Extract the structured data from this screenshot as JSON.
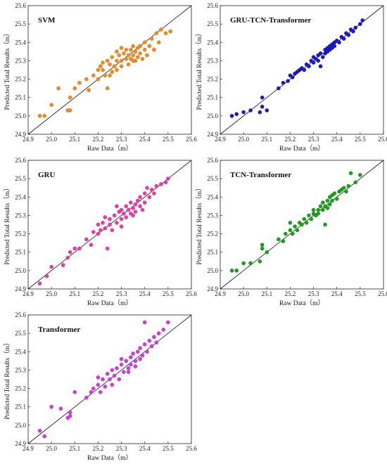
{
  "figure": {
    "xlabel": "Raw Data（m）",
    "ylabel": "Predicted Total Results（m）"
  },
  "chart_data": [
    {
      "type": "scatter",
      "title": "SVM",
      "xlabel": "Raw Data（m）",
      "ylabel": "Predicted Total Results（m）",
      "xlim": [
        24.9,
        25.6
      ],
      "ylim": [
        24.9,
        25.6
      ],
      "xticks": [
        "24.9",
        "25.0",
        "25.1",
        "25.2",
        "25.3",
        "25.4",
        "25.5",
        "25.6"
      ],
      "yticks": [
        "24.9",
        "25.0",
        "25.1",
        "25.2",
        "25.3",
        "25.4",
        "25.5",
        "25.6"
      ],
      "reference_line": "y = x",
      "color": "#f08c1e",
      "points": [
        [
          24.95,
          25.0
        ],
        [
          24.97,
          25.0
        ],
        [
          25.0,
          25.06
        ],
        [
          25.03,
          25.15
        ],
        [
          25.07,
          25.03
        ],
        [
          25.08,
          25.03
        ],
        [
          25.08,
          25.1
        ],
        [
          25.1,
          25.15
        ],
        [
          25.12,
          25.18
        ],
        [
          25.15,
          25.2
        ],
        [
          25.16,
          25.14
        ],
        [
          25.18,
          25.22
        ],
        [
          25.2,
          25.2
        ],
        [
          25.2,
          25.25
        ],
        [
          25.21,
          25.27
        ],
        [
          25.22,
          25.29
        ],
        [
          25.23,
          25.22
        ],
        [
          25.24,
          25.15
        ],
        [
          25.24,
          25.3
        ],
        [
          25.25,
          25.28
        ],
        [
          25.26,
          25.24
        ],
        [
          25.26,
          25.32
        ],
        [
          25.27,
          25.27
        ],
        [
          25.28,
          25.3
        ],
        [
          25.28,
          25.25
        ],
        [
          25.29,
          25.33
        ],
        [
          25.3,
          25.3
        ],
        [
          25.3,
          25.27
        ],
        [
          25.31,
          25.34
        ],
        [
          25.32,
          25.31
        ],
        [
          25.32,
          25.36
        ],
        [
          25.33,
          25.28
        ],
        [
          25.33,
          25.33
        ],
        [
          25.34,
          25.31
        ],
        [
          25.34,
          25.36
        ],
        [
          25.35,
          25.33
        ],
        [
          25.35,
          25.38
        ],
        [
          25.36,
          25.3
        ],
        [
          25.36,
          25.35
        ],
        [
          25.37,
          25.32
        ],
        [
          25.37,
          25.37
        ],
        [
          25.38,
          25.34
        ],
        [
          25.38,
          25.38
        ],
        [
          25.39,
          25.31
        ],
        [
          25.4,
          25.36
        ],
        [
          25.4,
          25.4
        ],
        [
          25.41,
          25.33
        ],
        [
          25.42,
          25.38
        ],
        [
          25.43,
          25.42
        ],
        [
          25.44,
          25.36
        ],
        [
          25.45,
          25.45
        ],
        [
          25.46,
          25.4
        ],
        [
          25.47,
          25.47
        ],
        [
          25.49,
          25.45
        ],
        [
          25.51,
          25.46
        ],
        [
          25.28,
          25.35
        ],
        [
          25.3,
          25.37
        ],
        [
          25.35,
          25.3
        ],
        [
          25.22,
          25.25
        ],
        [
          25.25,
          25.22
        ]
      ]
    },
    {
      "type": "scatter",
      "title": "GRU-TCN-Transformer",
      "xlabel": "Raw Data（m）",
      "ylabel": "Predicted Total Results（m）",
      "xlim": [
        24.9,
        25.6
      ],
      "ylim": [
        24.9,
        25.6
      ],
      "xticks": [
        "24.9",
        "25.0",
        "25.1",
        "25.2",
        "25.3",
        "25.4",
        "25.5",
        "25.6"
      ],
      "yticks": [
        "24.9",
        "25.0",
        "25.1",
        "25.2",
        "25.3",
        "25.4",
        "25.5",
        "25.6"
      ],
      "reference_line": "y = x",
      "color": "#1a1ac8",
      "points": [
        [
          24.95,
          25.0
        ],
        [
          24.97,
          25.01
        ],
        [
          25.0,
          25.02
        ],
        [
          25.03,
          25.03
        ],
        [
          25.07,
          25.02
        ],
        [
          25.08,
          25.05
        ],
        [
          25.08,
          25.1
        ],
        [
          25.1,
          25.03
        ],
        [
          25.15,
          25.15
        ],
        [
          25.17,
          25.18
        ],
        [
          25.19,
          25.19
        ],
        [
          25.2,
          25.22
        ],
        [
          25.21,
          25.21
        ],
        [
          25.22,
          25.23
        ],
        [
          25.23,
          25.24
        ],
        [
          25.24,
          25.25
        ],
        [
          25.25,
          25.26
        ],
        [
          25.26,
          25.25
        ],
        [
          25.27,
          25.28
        ],
        [
          25.28,
          25.27
        ],
        [
          25.29,
          25.3
        ],
        [
          25.3,
          25.29
        ],
        [
          25.31,
          25.31
        ],
        [
          25.32,
          25.33
        ],
        [
          25.32,
          25.3
        ],
        [
          25.33,
          25.34
        ],
        [
          25.34,
          25.32
        ],
        [
          25.35,
          25.36
        ],
        [
          25.35,
          25.34
        ],
        [
          25.36,
          25.37
        ],
        [
          25.36,
          25.35
        ],
        [
          25.37,
          25.38
        ],
        [
          25.37,
          25.36
        ],
        [
          25.38,
          25.39
        ],
        [
          25.38,
          25.37
        ],
        [
          25.39,
          25.4
        ],
        [
          25.39,
          25.38
        ],
        [
          25.4,
          25.41
        ],
        [
          25.41,
          25.4
        ],
        [
          25.42,
          25.43
        ],
        [
          25.43,
          25.42
        ],
        [
          25.44,
          25.45
        ],
        [
          25.45,
          25.44
        ],
        [
          25.46,
          25.47
        ],
        [
          25.47,
          25.46
        ],
        [
          25.48,
          25.48
        ],
        [
          25.5,
          25.5
        ],
        [
          25.51,
          25.52
        ],
        [
          25.3,
          25.32
        ],
        [
          25.33,
          25.27
        ]
      ]
    },
    {
      "type": "scatter",
      "title": "GRU",
      "xlabel": "Raw Data（m）",
      "ylabel": "Predicted Total Results（m）",
      "xlim": [
        24.9,
        25.6
      ],
      "ylim": [
        24.9,
        25.6
      ],
      "xticks": [
        "24.9",
        "25.0",
        "25.1",
        "25.2",
        "25.3",
        "25.4",
        "25.5",
        "25.6"
      ],
      "yticks": [
        "24.9",
        "25.0",
        "25.1",
        "25.2",
        "25.3",
        "25.4",
        "25.5",
        "25.6"
      ],
      "reference_line": "y = x",
      "color": "#ee3aa8",
      "points": [
        [
          24.95,
          24.93
        ],
        [
          24.98,
          24.97
        ],
        [
          25.0,
          25.02
        ],
        [
          25.05,
          25.03
        ],
        [
          25.07,
          25.07
        ],
        [
          25.08,
          25.1
        ],
        [
          25.1,
          25.12
        ],
        [
          25.12,
          25.12
        ],
        [
          25.15,
          25.17
        ],
        [
          25.17,
          25.14
        ],
        [
          25.18,
          25.21
        ],
        [
          25.2,
          25.2
        ],
        [
          25.2,
          25.25
        ],
        [
          25.21,
          25.22
        ],
        [
          25.22,
          25.26
        ],
        [
          25.23,
          25.23
        ],
        [
          25.23,
          25.29
        ],
        [
          25.24,
          25.12
        ],
        [
          25.25,
          25.25
        ],
        [
          25.25,
          25.28
        ],
        [
          25.26,
          25.22
        ],
        [
          25.27,
          25.3
        ],
        [
          25.28,
          25.26
        ],
        [
          25.29,
          25.32
        ],
        [
          25.3,
          25.28
        ],
        [
          25.3,
          25.33
        ],
        [
          25.31,
          25.31
        ],
        [
          25.32,
          25.35
        ],
        [
          25.32,
          25.29
        ],
        [
          25.33,
          25.33
        ],
        [
          25.34,
          25.31
        ],
        [
          25.34,
          25.37
        ],
        [
          25.35,
          25.34
        ],
        [
          25.36,
          25.36
        ],
        [
          25.36,
          25.32
        ],
        [
          25.37,
          25.38
        ],
        [
          25.38,
          25.35
        ],
        [
          25.38,
          25.4
        ],
        [
          25.39,
          25.33
        ],
        [
          25.4,
          25.42
        ],
        [
          25.4,
          25.37
        ],
        [
          25.41,
          25.45
        ],
        [
          25.42,
          25.4
        ],
        [
          25.43,
          25.44
        ],
        [
          25.44,
          25.42
        ],
        [
          25.45,
          25.46
        ],
        [
          25.47,
          25.47
        ],
        [
          25.49,
          25.48
        ],
        [
          25.5,
          25.5
        ],
        [
          25.35,
          25.3
        ],
        [
          25.28,
          25.35
        ],
        [
          25.3,
          25.24
        ]
      ]
    },
    {
      "type": "scatter",
      "title": "TCN-Transformer",
      "xlabel": "Raw Data（m）",
      "ylabel": "Predicted Total Results（m）",
      "xlim": [
        24.9,
        25.6
      ],
      "ylim": [
        24.9,
        25.6
      ],
      "xticks": [
        "24.9",
        "25.0",
        "25.1",
        "25.2",
        "25.3",
        "25.4",
        "25.5",
        "25.6"
      ],
      "yticks": [
        "24.9",
        "25.0",
        "25.1",
        "25.2",
        "25.3",
        "25.4",
        "25.5",
        "25.6"
      ],
      "reference_line": "y = x",
      "color": "#1aa01a",
      "points": [
        [
          24.95,
          25.0
        ],
        [
          24.97,
          25.0
        ],
        [
          25.0,
          25.04
        ],
        [
          25.03,
          25.04
        ],
        [
          25.07,
          25.05
        ],
        [
          25.08,
          25.14
        ],
        [
          25.08,
          25.12
        ],
        [
          25.1,
          25.1
        ],
        [
          25.15,
          25.17
        ],
        [
          25.17,
          25.16
        ],
        [
          25.18,
          25.2
        ],
        [
          25.2,
          25.22
        ],
        [
          25.2,
          25.26
        ],
        [
          25.21,
          25.2
        ],
        [
          25.22,
          25.24
        ],
        [
          25.23,
          25.22
        ],
        [
          25.24,
          25.26
        ],
        [
          25.25,
          25.25
        ],
        [
          25.26,
          25.28
        ],
        [
          25.27,
          25.26
        ],
        [
          25.28,
          25.3
        ],
        [
          25.29,
          25.28
        ],
        [
          25.3,
          25.31
        ],
        [
          25.31,
          25.3
        ],
        [
          25.32,
          25.33
        ],
        [
          25.32,
          25.31
        ],
        [
          25.33,
          25.35
        ],
        [
          25.34,
          25.33
        ],
        [
          25.34,
          25.37
        ],
        [
          25.35,
          25.35
        ],
        [
          25.36,
          25.38
        ],
        [
          25.36,
          25.34
        ],
        [
          25.37,
          25.4
        ],
        [
          25.37,
          25.36
        ],
        [
          25.38,
          25.41
        ],
        [
          25.38,
          25.38
        ],
        [
          25.39,
          25.42
        ],
        [
          25.4,
          25.39
        ],
        [
          25.41,
          25.43
        ],
        [
          25.42,
          25.44
        ],
        [
          25.43,
          25.45
        ],
        [
          25.44,
          25.43
        ],
        [
          25.45,
          25.46
        ],
        [
          25.46,
          25.53
        ],
        [
          25.48,
          25.48
        ],
        [
          25.5,
          25.52
        ],
        [
          25.35,
          25.25
        ],
        [
          25.3,
          25.33
        ]
      ]
    },
    {
      "type": "scatter",
      "title": "Transformer",
      "xlabel": "Raw Data（m）",
      "ylabel": "Predicted Total Results（m）",
      "xlim": [
        24.9,
        25.6
      ],
      "ylim": [
        24.9,
        25.6
      ],
      "xticks": [
        "24.9",
        "25.0",
        "25.1",
        "25.2",
        "25.3",
        "25.4",
        "25.5",
        "25.6"
      ],
      "yticks": [
        "24.9",
        "25.0",
        "25.1",
        "25.2",
        "25.3",
        "25.4",
        "25.5",
        "25.6"
      ],
      "reference_line": "y = x",
      "color": "#d43ae0",
      "points": [
        [
          24.95,
          24.97
        ],
        [
          24.97,
          24.94
        ],
        [
          25.0,
          25.1
        ],
        [
          25.04,
          25.09
        ],
        [
          25.07,
          25.04
        ],
        [
          25.08,
          25.07
        ],
        [
          25.08,
          25.05
        ],
        [
          25.1,
          25.18
        ],
        [
          25.15,
          25.15
        ],
        [
          25.17,
          25.18
        ],
        [
          25.18,
          25.2
        ],
        [
          25.2,
          25.22
        ],
        [
          25.2,
          25.26
        ],
        [
          25.21,
          25.18
        ],
        [
          25.22,
          25.25
        ],
        [
          25.23,
          25.21
        ],
        [
          25.24,
          25.28
        ],
        [
          25.25,
          25.25
        ],
        [
          25.26,
          25.22
        ],
        [
          25.26,
          25.3
        ],
        [
          25.27,
          25.27
        ],
        [
          25.28,
          25.31
        ],
        [
          25.29,
          25.25
        ],
        [
          25.3,
          25.33
        ],
        [
          25.31,
          25.29
        ],
        [
          25.32,
          25.35
        ],
        [
          25.33,
          25.31
        ],
        [
          25.34,
          25.37
        ],
        [
          25.34,
          25.33
        ],
        [
          25.35,
          25.39
        ],
        [
          25.36,
          25.35
        ],
        [
          25.36,
          25.32
        ],
        [
          25.37,
          25.4
        ],
        [
          25.38,
          25.36
        ],
        [
          25.38,
          25.42
        ],
        [
          25.39,
          25.38
        ],
        [
          25.4,
          25.56
        ],
        [
          25.4,
          25.44
        ],
        [
          25.41,
          25.4
        ],
        [
          25.42,
          25.46
        ],
        [
          25.43,
          25.43
        ],
        [
          25.44,
          25.48
        ],
        [
          25.45,
          25.45
        ],
        [
          25.46,
          25.5
        ],
        [
          25.48,
          25.52
        ],
        [
          25.5,
          25.56
        ],
        [
          25.33,
          25.29
        ],
        [
          25.3,
          25.36
        ]
      ]
    }
  ]
}
